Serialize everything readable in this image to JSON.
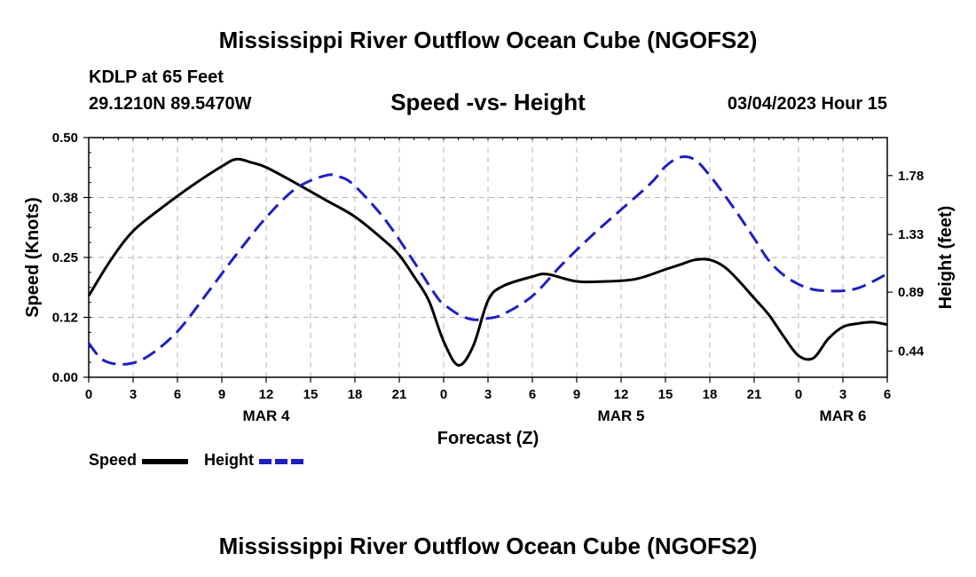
{
  "page_title": "Mississippi River Outflow Ocean Cube (NGOFS2)",
  "station": {
    "line1": "KDLP at 65 Feet",
    "coords": "29.1210N  89.5470W"
  },
  "subtitle": "Speed -vs- Height",
  "timestamp": "03/04/2023 Hour 15",
  "bottom_title": "Mississippi River Outflow Ocean Cube (NGOFS2)",
  "chart_data": {
    "type": "line",
    "title": "Speed -vs- Height",
    "xlabel": "Forecast (Z)",
    "ylabel": "Speed (Knots)",
    "y2label": "Height (feet)",
    "xlim": [
      0,
      54
    ],
    "ylim": [
      0,
      0.5
    ],
    "y2lim": [
      0.24,
      2.07
    ],
    "x_ticks": [
      0,
      3,
      6,
      9,
      12,
      15,
      18,
      21,
      24,
      27,
      30,
      33,
      36,
      39,
      42,
      45,
      48,
      51,
      54
    ],
    "x_tick_labels": [
      "0",
      "3",
      "6",
      "9",
      "12",
      "15",
      "18",
      "21",
      "0",
      "3",
      "6",
      "9",
      "12",
      "15",
      "18",
      "21",
      "0",
      "3",
      "6"
    ],
    "day_labels": [
      {
        "x": 12,
        "label": "MAR 4"
      },
      {
        "x": 36,
        "label": "MAR 5"
      },
      {
        "x": 51,
        "label": "MAR 6"
      }
    ],
    "y_ticks": [
      0,
      0.125,
      0.25,
      0.375,
      0.5
    ],
    "y_tick_labels": [
      "0.00",
      "0.12",
      "0.25",
      "0.38",
      "0.50"
    ],
    "y2_ticks": [
      0.44,
      0.89,
      1.33,
      1.78
    ],
    "y2_tick_labels": [
      "0.44",
      "0.89",
      "1.33",
      "1.78"
    ],
    "grid": true,
    "legend_placement": "bottom-left",
    "series": [
      {
        "name": "Speed",
        "axis": "left",
        "color": "#000000",
        "style": "solid",
        "x": [
          0,
          1.5,
          3,
          5,
          7,
          9,
          10,
          11,
          12,
          14,
          16,
          18,
          20,
          21,
          22,
          23,
          24,
          25,
          26,
          27,
          28,
          30,
          31,
          33,
          35,
          37,
          39,
          40,
          41,
          42,
          43,
          44,
          45,
          46,
          47,
          48,
          49,
          50,
          51,
          52,
          53,
          54
        ],
        "y": [
          0.17,
          0.245,
          0.305,
          0.355,
          0.4,
          0.44,
          0.455,
          0.448,
          0.438,
          0.405,
          0.37,
          0.335,
          0.285,
          0.255,
          0.21,
          0.16,
          0.075,
          0.025,
          0.065,
          0.16,
          0.19,
          0.21,
          0.215,
          0.2,
          0.2,
          0.205,
          0.225,
          0.235,
          0.245,
          0.245,
          0.23,
          0.2,
          0.165,
          0.13,
          0.085,
          0.045,
          0.04,
          0.08,
          0.105,
          0.112,
          0.115,
          0.11
        ]
      },
      {
        "name": "Height",
        "axis": "right",
        "color": "#1f1fbf",
        "style": "dashed",
        "x": [
          0,
          1,
          2.5,
          4,
          6,
          8,
          10,
          12,
          14,
          16,
          17,
          18,
          20,
          22,
          23.5,
          24,
          25,
          26,
          27,
          28,
          30,
          32,
          34,
          36,
          38,
          39,
          40,
          41,
          42,
          43,
          44,
          45,
          46,
          47,
          48,
          49,
          50,
          51,
          52,
          53,
          54
        ],
        "y": [
          0.5,
          0.37,
          0.34,
          0.4,
          0.59,
          0.88,
          1.18,
          1.46,
          1.68,
          1.78,
          1.77,
          1.7,
          1.45,
          1.12,
          0.86,
          0.8,
          0.72,
          0.68,
          0.69,
          0.72,
          0.86,
          1.1,
          1.32,
          1.52,
          1.72,
          1.85,
          1.92,
          1.9,
          1.78,
          1.63,
          1.47,
          1.3,
          1.13,
          1.02,
          0.95,
          0.91,
          0.9,
          0.9,
          0.92,
          0.97,
          1.03
        ]
      }
    ]
  }
}
